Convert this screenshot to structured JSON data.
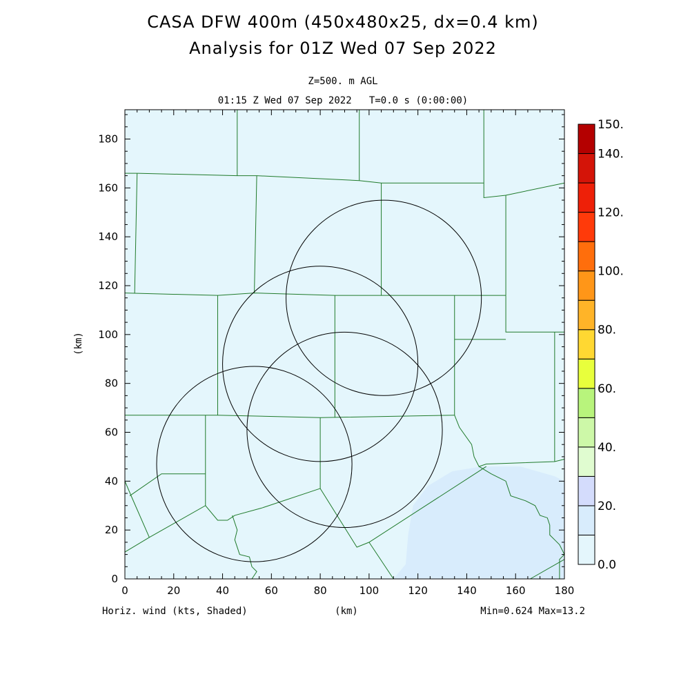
{
  "title": {
    "line1": "CASA DFW 400m (450x480x25, dx=0.4 km)",
    "line2": "Analysis for 01Z Wed 07 Sep 2022"
  },
  "subtitle": {
    "level": "Z=500. m AGL",
    "time": "01:15 Z Wed 07 Sep 2022   T=0.0 s (0:00:00)"
  },
  "footer": {
    "left": "Horiz. wind (kts, Shaded)",
    "center": "(km)",
    "right": "Min=0.624 Max=13.2"
  },
  "axes": {
    "xlabel": "(km)",
    "ylabel": "(km)",
    "xlim": [
      0,
      180
    ],
    "ylim": [
      0,
      192
    ],
    "xticks": [
      "0",
      "20",
      "40",
      "60",
      "80",
      "100",
      "120",
      "140",
      "160",
      "180"
    ],
    "yticks": [
      "0",
      "20",
      "40",
      "60",
      "80",
      "100",
      "120",
      "140",
      "160",
      "180"
    ]
  },
  "colorbar": {
    "labels": [
      "0.0",
      "20.",
      "40.",
      "60.",
      "80.",
      "100.",
      "120.",
      "140.",
      "150."
    ],
    "levels": [
      0,
      10,
      20,
      30,
      40,
      50,
      60,
      70,
      80,
      90,
      100,
      110,
      120,
      130,
      140,
      150
    ],
    "colors": [
      "#e4f6fc",
      "#d8ecfc",
      "#d4dcfc",
      "#e0fcd0",
      "#cdf8a8",
      "#b8f47c",
      "#e8ff3c",
      "#ffd832",
      "#ffb428",
      "#ff9618",
      "#ff6e0c",
      "#ff3a0a",
      "#ee2008",
      "#d41408",
      "#b40000"
    ]
  },
  "chart_data": {
    "type": "heatmap",
    "variable": "Horiz. wind (kts, Shaded)",
    "min": 0.624,
    "max": 13.2,
    "background_color": "#e4f6fc",
    "region_color": "#d8ecfc",
    "high_wind_region_km": [
      [
        110,
        0
      ],
      [
        115,
        6
      ],
      [
        116,
        18
      ],
      [
        118,
        30
      ],
      [
        124,
        38
      ],
      [
        134,
        44
      ],
      [
        146,
        46
      ],
      [
        162,
        46
      ],
      [
        176,
        42
      ],
      [
        180,
        40
      ],
      [
        180,
        0
      ]
    ],
    "radar_circles_km": [
      {
        "cx": 80,
        "cy": 88,
        "r": 40
      },
      {
        "cx": 106,
        "cy": 115,
        "r": 40
      },
      {
        "cx": 53,
        "cy": 47,
        "r": 40
      },
      {
        "cx": 90,
        "cy": 61,
        "r": 40
      }
    ],
    "county_lines_km": [
      [
        [
          0,
          166
        ],
        [
          5,
          166
        ]
      ],
      [
        [
          4,
          117
        ],
        [
          5,
          166
        ]
      ],
      [
        [
          5,
          166
        ],
        [
          46,
          165
        ],
        [
          54,
          165
        ],
        [
          96,
          163
        ],
        [
          105,
          162
        ],
        [
          147,
          162
        ]
      ],
      [
        [
          46,
          192
        ],
        [
          46,
          165
        ]
      ],
      [
        [
          96,
          192
        ],
        [
          96,
          163
        ]
      ],
      [
        [
          147,
          192
        ],
        [
          147,
          156
        ],
        [
          156,
          157
        ],
        [
          180,
          162
        ]
      ],
      [
        [
          54,
          165
        ],
        [
          53,
          117
        ]
      ],
      [
        [
          105,
          162
        ],
        [
          105,
          116
        ]
      ],
      [
        [
          156,
          157
        ],
        [
          156,
          116
        ]
      ],
      [
        [
          0,
          117
        ],
        [
          38,
          116
        ],
        [
          53,
          117
        ],
        [
          86,
          116
        ],
        [
          105,
          116
        ],
        [
          135,
          116
        ],
        [
          156,
          116
        ]
      ],
      [
        [
          38,
          116
        ],
        [
          38,
          67
        ]
      ],
      [
        [
          86,
          116
        ],
        [
          86,
          66
        ]
      ],
      [
        [
          135,
          116
        ],
        [
          135,
          67
        ]
      ],
      [
        [
          135,
          98
        ],
        [
          156,
          98
        ]
      ],
      [
        [
          156,
          116
        ],
        [
          156,
          101
        ],
        [
          168,
          101
        ],
        [
          180,
          101
        ]
      ],
      [
        [
          176,
          101
        ],
        [
          176,
          48
        ]
      ],
      [
        [
          0,
          67
        ],
        [
          33,
          67
        ],
        [
          38,
          67
        ],
        [
          80,
          66
        ],
        [
          135,
          67
        ]
      ],
      [
        [
          33,
          67
        ],
        [
          33,
          30
        ]
      ],
      [
        [
          80,
          66
        ],
        [
          80,
          37
        ]
      ],
      [
        [
          135,
          67
        ],
        [
          137,
          62
        ],
        [
          142,
          55
        ],
        [
          143,
          50
        ],
        [
          145,
          46
        ],
        [
          148,
          47
        ],
        [
          176,
          48
        ],
        [
          180,
          49
        ]
      ],
      [
        [
          145,
          46
        ],
        [
          150,
          43
        ],
        [
          156,
          40
        ],
        [
          158,
          34
        ],
        [
          164,
          32
        ],
        [
          168,
          30
        ],
        [
          170,
          26
        ],
        [
          173,
          25
        ],
        [
          174,
          22
        ],
        [
          174,
          18
        ],
        [
          176,
          16
        ],
        [
          178,
          14
        ],
        [
          179,
          12
        ],
        [
          180,
          10
        ]
      ],
      [
        [
          2,
          34
        ],
        [
          15,
          43
        ],
        [
          33,
          43
        ]
      ],
      [
        [
          0,
          40
        ],
        [
          3,
          33
        ],
        [
          10,
          17
        ]
      ],
      [
        [
          0,
          11
        ],
        [
          10,
          17
        ],
        [
          33,
          30
        ],
        [
          38,
          24
        ],
        [
          42,
          24
        ],
        [
          45,
          26
        ],
        [
          56,
          29
        ],
        [
          80,
          37
        ],
        [
          95,
          13
        ],
        [
          100,
          15
        ],
        [
          148,
          46
        ]
      ],
      [
        [
          44,
          26
        ],
        [
          46,
          20
        ],
        [
          45,
          16
        ],
        [
          47,
          10
        ],
        [
          51,
          9
        ],
        [
          52,
          5
        ],
        [
          54,
          3
        ],
        [
          52,
          0
        ]
      ],
      [
        [
          100,
          15
        ],
        [
          110,
          0
        ]
      ],
      [
        [
          166,
          0
        ],
        [
          180,
          8
        ]
      ],
      [
        [
          178,
          0
        ],
        [
          178,
          8
        ],
        [
          180,
          10
        ]
      ]
    ]
  }
}
